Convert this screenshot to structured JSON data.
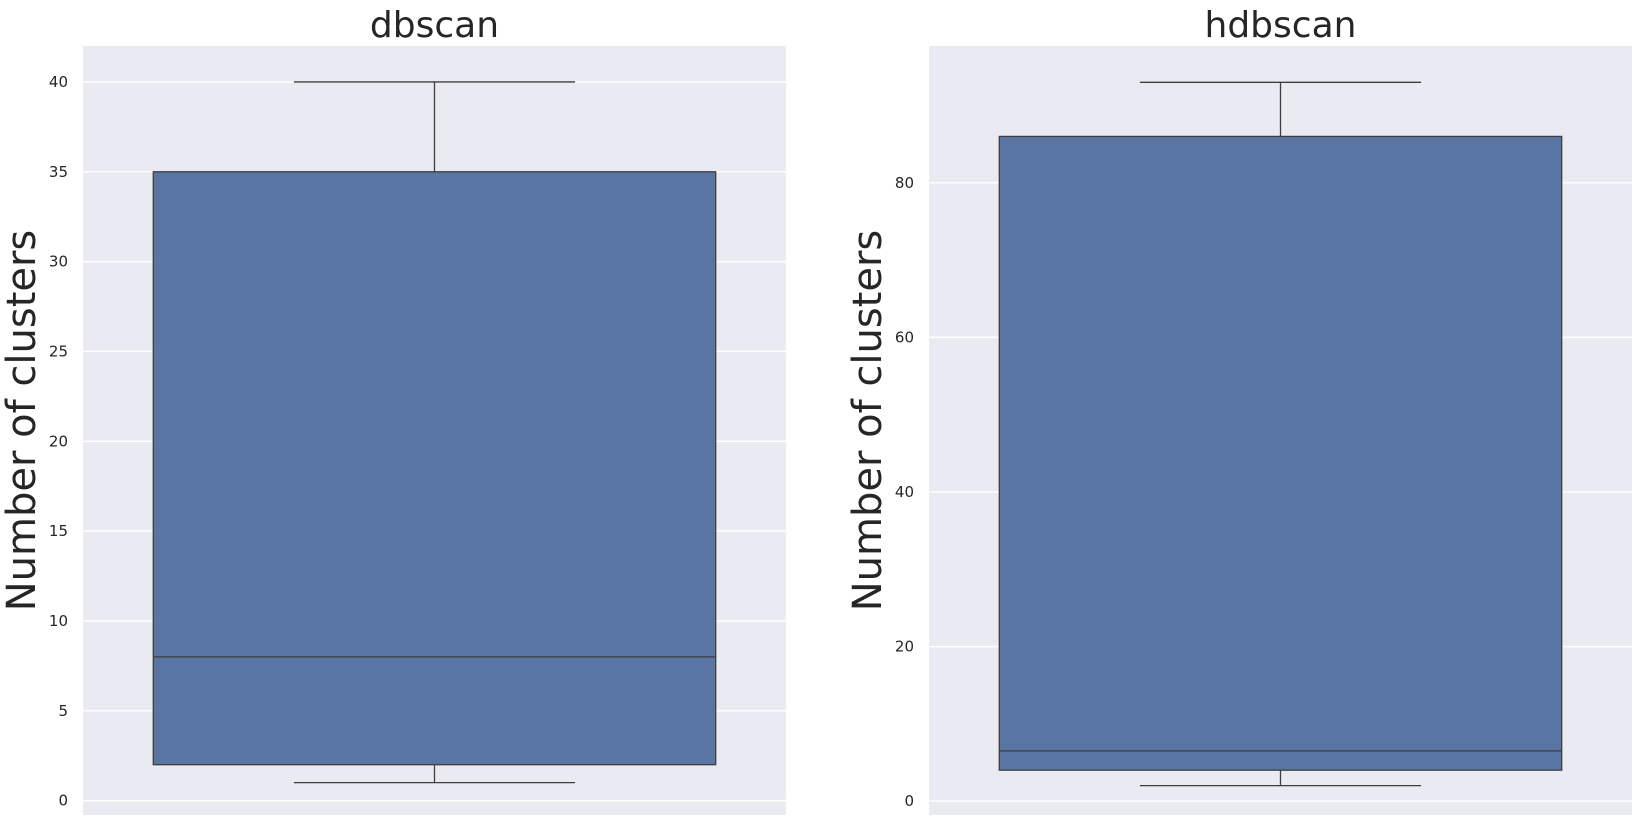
{
  "chart_data": [
    {
      "type": "box",
      "title": "dbscan",
      "ylabel": "Number of clusters",
      "ylim": [
        -0.8,
        42
      ],
      "yticks": [
        0,
        5,
        10,
        15,
        20,
        25,
        30,
        35,
        40
      ],
      "ytick_labels": [
        "0",
        "5",
        "10",
        "15",
        "20",
        "25",
        "30",
        "35",
        "40"
      ],
      "box": {
        "whisker_low": 1,
        "q1": 2,
        "median": 8,
        "q3": 35,
        "whisker_high": 40
      },
      "grid": true
    },
    {
      "type": "box",
      "title": "hdbscan",
      "ylabel": "Number of clusters",
      "ylim": [
        -1.8,
        97.7
      ],
      "yticks": [
        0,
        20,
        40,
        60,
        80
      ],
      "ytick_labels": [
        "0",
        "20",
        "40",
        "60",
        "80"
      ],
      "box": {
        "whisker_low": 2,
        "q1": 4,
        "median": 6.5,
        "q3": 86,
        "whisker_high": 93
      },
      "grid": true
    }
  ],
  "colors": {
    "box_fill": "#5975a4",
    "box_edge": "#3d3d3d",
    "plot_background": "#eaeaf2",
    "grid": "#ffffff",
    "text": "#262626"
  }
}
